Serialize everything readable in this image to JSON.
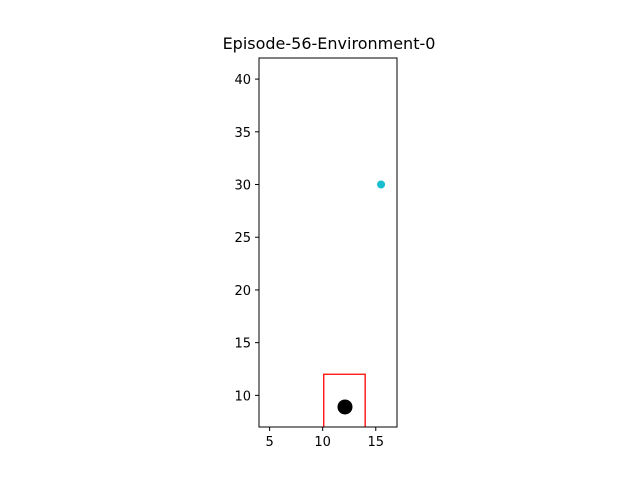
{
  "chart_data": {
    "type": "scatter",
    "title": "Episode-56-Environment-0",
    "xlabel": "",
    "ylabel": "",
    "xlim": [
      4,
      17
    ],
    "ylim": [
      7,
      42
    ],
    "x_ticks": [
      5,
      10,
      15
    ],
    "y_ticks": [
      10,
      15,
      20,
      25,
      30,
      35,
      40
    ],
    "grid": false,
    "points": [
      {
        "x": 15.5,
        "y": 30,
        "color": "#17becf",
        "size": "small"
      },
      {
        "x": 12.1,
        "y": 8.9,
        "color": "#000000",
        "size": "large"
      }
    ],
    "rectangle": {
      "x": [
        10.1,
        14
      ],
      "y": [
        7,
        12
      ],
      "color": "#ff0000",
      "open_bottom": true
    }
  }
}
